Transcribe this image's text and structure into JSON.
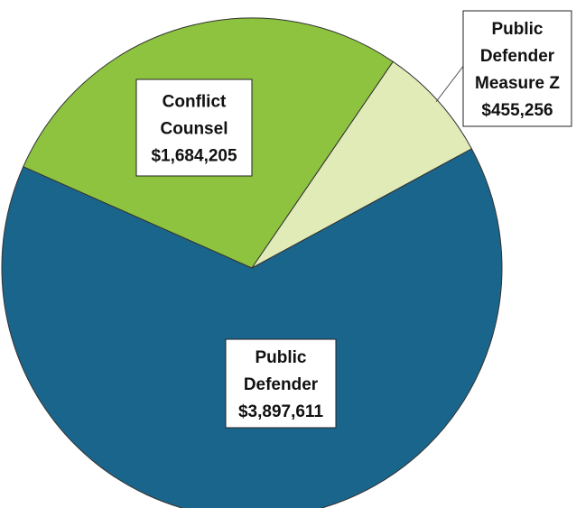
{
  "chart_data": {
    "type": "pie",
    "title": "",
    "slices": [
      {
        "label_lines": [
          "Public",
          "Defender"
        ],
        "value": 3897611,
        "value_label": "$3,897,611",
        "color": "#1a658c"
      },
      {
        "label_lines": [
          "Conflict",
          "Counsel"
        ],
        "value": 1684205,
        "value_label": "$1,684,205",
        "color": "#8dc33f"
      },
      {
        "label_lines": [
          "Public",
          "Defender",
          "Measure Z"
        ],
        "value": 455256,
        "value_label": "$455,256",
        "color": "#e1ebb8"
      }
    ],
    "legend": "none"
  }
}
